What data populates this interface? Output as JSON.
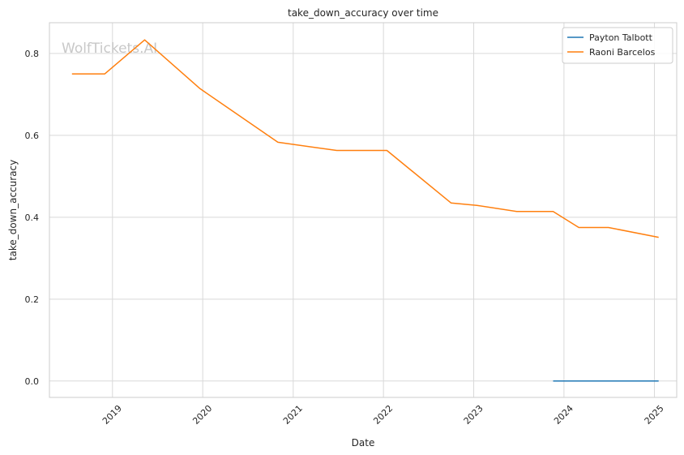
{
  "chart_data": {
    "type": "line",
    "title": "take_down_accuracy over time",
    "xlabel": "Date",
    "ylabel": "take_down_accuracy",
    "watermark": "WolfTickets.AI",
    "xlim": [
      "2018-04-21",
      "2025-04-01"
    ],
    "ylim": [
      -0.04,
      0.875
    ],
    "x_ticks": [
      "2019",
      "2020",
      "2021",
      "2022",
      "2023",
      "2024",
      "2025"
    ],
    "y_ticks": [
      "0.0",
      "0.2",
      "0.4",
      "0.6",
      "0.8"
    ],
    "grid": true,
    "legend_position": "top-right",
    "series": [
      {
        "name": "Payton Talbott",
        "color": "#1f77b4",
        "points": [
          {
            "x": "2023-11-18",
            "y": 0.0
          },
          {
            "x": "2024-03-01",
            "y": 0.0
          },
          {
            "x": "2024-06-29",
            "y": 0.0
          },
          {
            "x": "2025-01-18",
            "y": 0.0
          }
        ]
      },
      {
        "name": "Raoni Barcelos",
        "color": "#ff7f0e",
        "points": [
          {
            "x": "2018-07-21",
            "y": 0.75
          },
          {
            "x": "2018-12-01",
            "y": 0.75
          },
          {
            "x": "2019-05-11",
            "y": 0.833
          },
          {
            "x": "2019-12-21",
            "y": 0.714
          },
          {
            "x": "2020-10-31",
            "y": 0.583
          },
          {
            "x": "2021-06-26",
            "y": 0.563
          },
          {
            "x": "2022-01-15",
            "y": 0.563
          },
          {
            "x": "2022-10-01",
            "y": 0.435
          },
          {
            "x": "2023-01-14",
            "y": 0.429
          },
          {
            "x": "2023-06-24",
            "y": 0.414
          },
          {
            "x": "2023-11-18",
            "y": 0.414
          },
          {
            "x": "2024-03-01",
            "y": 0.375
          },
          {
            "x": "2024-06-29",
            "y": 0.375
          },
          {
            "x": "2025-01-18",
            "y": 0.351
          }
        ]
      }
    ]
  }
}
